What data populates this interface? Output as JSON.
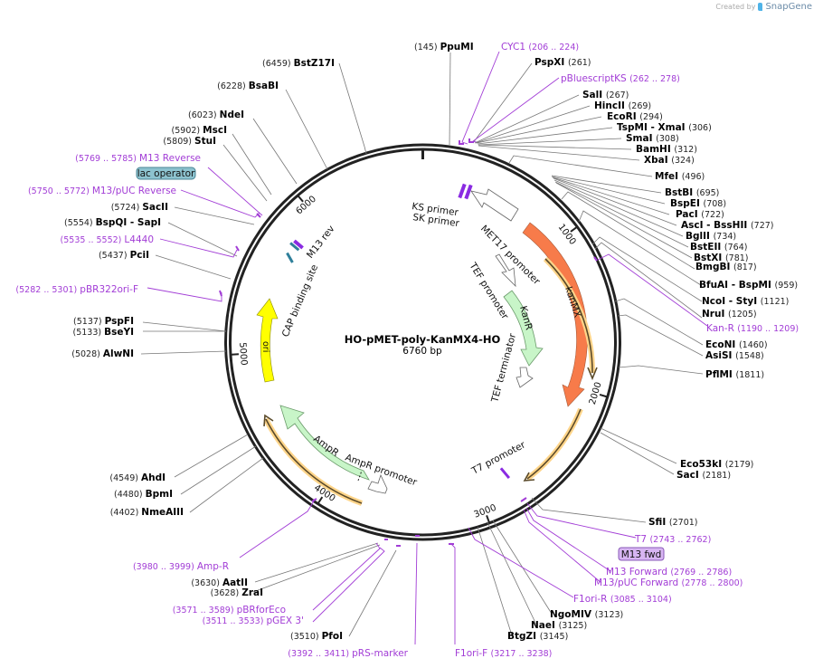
{
  "credit": {
    "prefix": "Created by",
    "brand": "SnapGene"
  },
  "plasmid": {
    "name": "HO-pMET-poly-KanMX4-HO",
    "length_label": "6760 bp",
    "length": 6760
  },
  "colors": {
    "enzyme": "#000000",
    "primer": "#a23dd6",
    "kanMX": "#f77b4a",
    "KanR": "#c8f5c8",
    "AmpR": "#c8f5c8",
    "ori": "#ffff00",
    "orf_glow": "#ffd58a",
    "lac_operator_bg": "#8dc3cf",
    "m13fwd_bg": "#d7b5f2",
    "cap_site": "#2e7f9a"
  },
  "ticks": [
    {
      "pos": 1000,
      "label": "1000"
    },
    {
      "pos": 2000,
      "label": "2000"
    },
    {
      "pos": 3000,
      "label": "3000"
    },
    {
      "pos": 4000,
      "label": "4000"
    },
    {
      "pos": 5000,
      "label": "5000"
    },
    {
      "pos": 6000,
      "label": "6000"
    }
  ],
  "enzymes_left": [
    {
      "name": "BstZ17I",
      "pos": "(6459)"
    },
    {
      "name": "BsaBI",
      "pos": "(6228)"
    },
    {
      "name": "NdeI",
      "pos": "(6023)"
    },
    {
      "name": "MscI",
      "pos": "(5902)"
    },
    {
      "name": "StuI",
      "pos": "(5809)"
    },
    {
      "name": "SacII",
      "pos": "(5724)"
    },
    {
      "name": "BspQI - SapI",
      "pos": "(5554)"
    },
    {
      "name": "PciI",
      "pos": "(5437)"
    },
    {
      "name": "PspFI",
      "pos": "(5137)"
    },
    {
      "name": "BseYI",
      "pos": "(5133)"
    },
    {
      "name": "AlwNI",
      "pos": "(5028)"
    },
    {
      "name": "AhdI",
      "pos": "(4549)"
    },
    {
      "name": "BpmI",
      "pos": "(4480)"
    },
    {
      "name": "NmeAIII",
      "pos": "(4402)"
    },
    {
      "name": "AatII",
      "pos": "(3630)"
    },
    {
      "name": "ZraI",
      "pos": "(3628)"
    },
    {
      "name": "PfoI",
      "pos": "(3510)"
    }
  ],
  "enzymes_right": [
    {
      "name": "PpuMI",
      "pos": "(145)"
    },
    {
      "name": "PspXI",
      "pos": "(261)"
    },
    {
      "name": "SalI",
      "pos": "(267)"
    },
    {
      "name": "HincII",
      "pos": "(269)"
    },
    {
      "name": "EcoRI",
      "pos": "(294)"
    },
    {
      "name": "TspMI - XmaI",
      "pos": "(306)"
    },
    {
      "name": "SmaI",
      "pos": "(308)"
    },
    {
      "name": "BamHI",
      "pos": "(312)"
    },
    {
      "name": "XbaI",
      "pos": "(324)"
    },
    {
      "name": "MfeI",
      "pos": "(496)"
    },
    {
      "name": "BstBI",
      "pos": "(695)"
    },
    {
      "name": "BspEI",
      "pos": "(708)"
    },
    {
      "name": "PacI",
      "pos": "(722)"
    },
    {
      "name": "AscI - BssHII",
      "pos": "(727)"
    },
    {
      "name": "BglII",
      "pos": "(734)"
    },
    {
      "name": "BstEII",
      "pos": "(764)"
    },
    {
      "name": "BstXI",
      "pos": "(781)"
    },
    {
      "name": "BmgBI",
      "pos": "(817)"
    },
    {
      "name": "BfuAI - BspMI",
      "pos": "(959)"
    },
    {
      "name": "NcoI - StyI",
      "pos": "(1121)"
    },
    {
      "name": "NruI",
      "pos": "(1205)"
    },
    {
      "name": "EcoNI",
      "pos": "(1460)"
    },
    {
      "name": "AsiSI",
      "pos": "(1548)"
    },
    {
      "name": "PflMI",
      "pos": "(1811)"
    },
    {
      "name": "Eco53kI",
      "pos": "(2179)"
    },
    {
      "name": "SacI",
      "pos": "(2181)"
    },
    {
      "name": "SfiI",
      "pos": "(2701)"
    },
    {
      "name": "NgoMIV",
      "pos": "(3123)"
    },
    {
      "name": "NaeI",
      "pos": "(3125)"
    },
    {
      "name": "BtgZI",
      "pos": "(3145)"
    }
  ],
  "primers": [
    {
      "name": "CYC1",
      "range": "(206 .. 224)"
    },
    {
      "name": "pBluescriptKS",
      "range": "(262 .. 278)"
    },
    {
      "name": "Kan-R",
      "range": "(1190 .. 1209)"
    },
    {
      "name": "T7",
      "range": "(2743 .. 2762)"
    },
    {
      "name": "M13 Forward",
      "range": "(2769 .. 2786)"
    },
    {
      "name": "M13/pUC Forward",
      "range": "(2778 .. 2800)"
    },
    {
      "name": "F1ori-R",
      "range": "(3085 .. 3104)"
    },
    {
      "name": "F1ori-F",
      "range": "(3217 .. 3238)"
    },
    {
      "name": "pRS-marker",
      "range": "(3392 .. 3411)"
    },
    {
      "name": "pGEX 3'",
      "range": "(3511 .. 3533)"
    },
    {
      "name": "pBRforEco",
      "range": "(3571 .. 3589)"
    },
    {
      "name": "Amp-R",
      "range": "(3980 .. 3999)"
    },
    {
      "name": "pBR322ori-F",
      "range": "(5282 .. 5301)"
    },
    {
      "name": "L4440",
      "range": "(5535 .. 5552)"
    },
    {
      "name": "M13/pUC Reverse",
      "range": "(5750 .. 5772)"
    },
    {
      "name": "M13 Reverse",
      "range": "(5769 .. 5785)"
    }
  ],
  "boxed_labels": [
    {
      "name": "lac operator"
    },
    {
      "name": "M13 fwd"
    }
  ],
  "features": [
    {
      "name": "kanMX"
    },
    {
      "name": "KanR"
    },
    {
      "name": "AmpR"
    },
    {
      "name": "ori"
    },
    {
      "name": "MET17 promoter"
    },
    {
      "name": "TEF promoter"
    },
    {
      "name": "TEF terminator"
    },
    {
      "name": "AmpR promoter"
    },
    {
      "name": "T7 promoter"
    },
    {
      "name": "KS primer"
    },
    {
      "name": "SK primer"
    },
    {
      "name": "M13 rev"
    },
    {
      "name": "CAP binding site"
    }
  ]
}
